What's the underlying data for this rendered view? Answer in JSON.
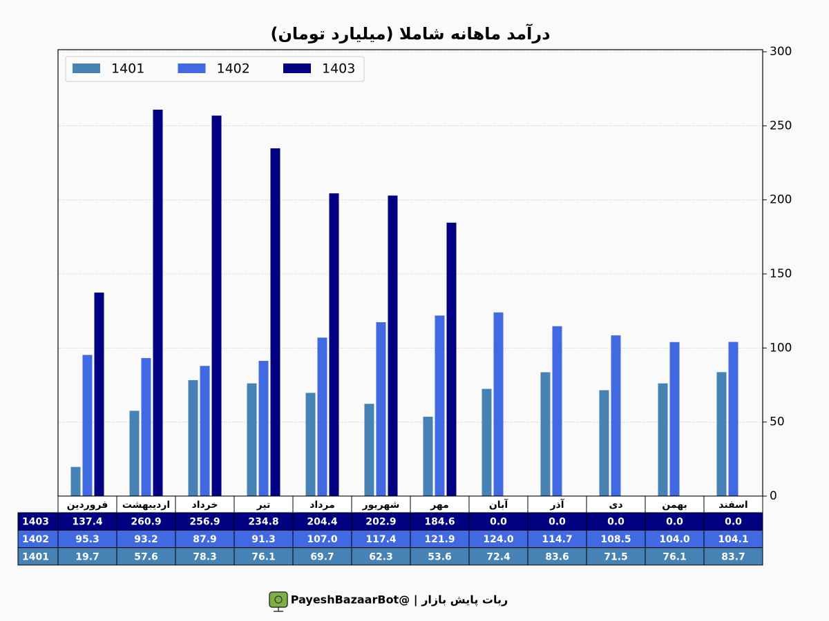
{
  "chart_data": {
    "type": "bar",
    "title": "درآمد ماهانه شاملا (میلیارد تومان)",
    "categories": [
      "فروردین",
      "اردیبهشت",
      "خرداد",
      "تیر",
      "مرداد",
      "شهریور",
      "مهر",
      "آبان",
      "آذر",
      "دی",
      "بهمن",
      "اسفند"
    ],
    "series": [
      {
        "name": "1401",
        "color": "#4682b4",
        "values": [
          19.7,
          57.6,
          78.3,
          76.1,
          69.7,
          62.3,
          53.6,
          72.4,
          83.6,
          71.5,
          76.1,
          83.7
        ],
        "value_labels": [
          "19.7",
          "57.6",
          "78.3",
          "76.1",
          "69.7",
          "62.3",
          "53.6",
          "72.4",
          "83.6",
          "71.5",
          "76.1",
          "83.7"
        ]
      },
      {
        "name": "1402",
        "color": "#4169e1",
        "values": [
          95.3,
          93.2,
          87.9,
          91.3,
          107.0,
          117.4,
          121.9,
          124.0,
          114.7,
          108.5,
          104.0,
          104.1
        ],
        "value_labels": [
          "95.3",
          "93.2",
          "87.9",
          "91.3",
          "107.0",
          "117.4",
          "121.9",
          "124.0",
          "114.7",
          "108.5",
          "104.0",
          "104.1"
        ]
      },
      {
        "name": "1403",
        "color": "#000080",
        "values": [
          137.4,
          260.9,
          256.9,
          234.8,
          204.4,
          202.9,
          184.6,
          0,
          0,
          0,
          0,
          0
        ],
        "value_labels": [
          "137.4",
          "260.9",
          "256.9",
          "234.8",
          "204.4",
          "202.9",
          "184.6",
          "0.0",
          "0.0",
          "0.0",
          "0.0",
          "0.0"
        ]
      }
    ],
    "ylim": [
      0,
      300
    ],
    "yticks": [
      0,
      50,
      100,
      150,
      200,
      250,
      300
    ],
    "grid": true,
    "legend": "upper left",
    "footer": "ربات پایش بازار  |  @PayeshBazaarBot"
  }
}
